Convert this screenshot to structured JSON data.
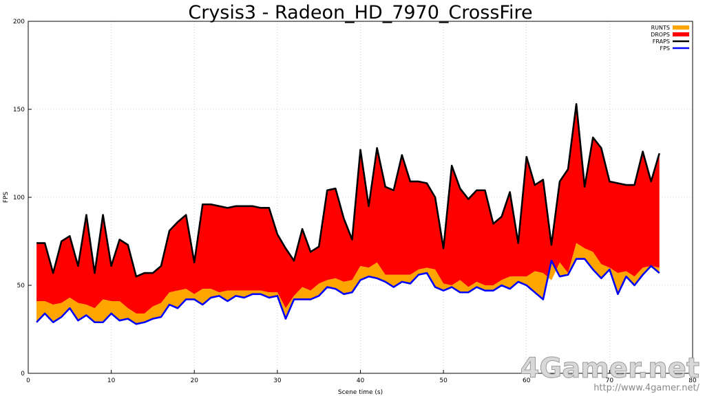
{
  "chart_data": {
    "type": "area",
    "title": "Crysis3 - Radeon_HD_7970_CrossFire",
    "xlabel": "Scene time (s)",
    "ylabel": "FPS",
    "xlim": [
      0,
      80
    ],
    "ylim": [
      0,
      200
    ],
    "xticks": [
      "0",
      "10",
      "20",
      "30",
      "40",
      "50",
      "60",
      "70",
      "80"
    ],
    "yticks": [
      "0",
      "50",
      "100",
      "150",
      "200"
    ],
    "grid": true,
    "legend_position": "top-right",
    "x": [
      1,
      2,
      3,
      4,
      5,
      6,
      7,
      8,
      9,
      10,
      11,
      12,
      13,
      14,
      15,
      16,
      17,
      18,
      19,
      20,
      21,
      22,
      23,
      24,
      25,
      26,
      27,
      28,
      29,
      30,
      31,
      32,
      33,
      34,
      35,
      36,
      37,
      38,
      39,
      40,
      41,
      42,
      43,
      44,
      45,
      46,
      47,
      48,
      49,
      50,
      51,
      52,
      53,
      54,
      55,
      56,
      57,
      58,
      59,
      60,
      61,
      62,
      63,
      64,
      65,
      66,
      67,
      68,
      69,
      70,
      71,
      72,
      73,
      74,
      75,
      76
    ],
    "series": [
      {
        "name": "FRAPS",
        "color": "#000000",
        "values": [
          74,
          74,
          57,
          75,
          78,
          61,
          90,
          57,
          90,
          61,
          76,
          73,
          55,
          57,
          57,
          61,
          81,
          86,
          90,
          63,
          96,
          96,
          95,
          94,
          95,
          95,
          95,
          94,
          94,
          79,
          71,
          64,
          82,
          69,
          72,
          104,
          105,
          88,
          76,
          127,
          95,
          128,
          106,
          104,
          124,
          109,
          109,
          108,
          100,
          71,
          118,
          105,
          99,
          104,
          104,
          85,
          89,
          103,
          74,
          123,
          107,
          110,
          73,
          109,
          116,
          153,
          106,
          134,
          128,
          109,
          108,
          107,
          107,
          126,
          109,
          125
        ]
      },
      {
        "name": "RUNTS",
        "color": "#ffa500",
        "values": [
          41,
          41,
          39,
          40,
          43,
          40,
          39,
          37,
          42,
          41,
          41,
          37,
          34,
          34,
          38,
          40,
          46,
          47,
          48,
          45,
          48,
          48,
          46,
          47,
          47,
          47,
          47,
          47,
          46,
          46,
          37,
          44,
          49,
          47,
          51,
          53,
          54,
          52,
          53,
          61,
          60,
          63,
          56,
          56,
          56,
          56,
          59,
          60,
          59,
          51,
          50,
          53,
          49,
          52,
          50,
          50,
          53,
          55,
          55,
          55,
          58,
          57,
          53,
          63,
          57,
          74,
          71,
          69,
          62,
          60,
          57,
          58,
          55,
          60,
          61,
          60
        ]
      },
      {
        "name": "FPS",
        "color": "#0000ff",
        "values": [
          29,
          34,
          29,
          32,
          37,
          30,
          33,
          29,
          29,
          34,
          30,
          31,
          28,
          29,
          31,
          32,
          39,
          37,
          42,
          42,
          39,
          43,
          44,
          41,
          44,
          43,
          45,
          45,
          43,
          44,
          31,
          42,
          42,
          42,
          44,
          49,
          48,
          45,
          46,
          53,
          55,
          54,
          52,
          49,
          52,
          51,
          56,
          57,
          49,
          47,
          49,
          46,
          46,
          49,
          47,
          47,
          50,
          48,
          52,
          50,
          46,
          42,
          64,
          55,
          56,
          65,
          65,
          59,
          54,
          59,
          45,
          55,
          50,
          56,
          61,
          57
        ]
      }
    ],
    "legend": [
      {
        "label": "RUNTS",
        "color": "#ffa500",
        "kind": "box"
      },
      {
        "label": "DROPS",
        "color": "#ff0000",
        "kind": "box"
      },
      {
        "label": "FRAPS",
        "color": "#000000",
        "kind": "line"
      },
      {
        "label": "FPS",
        "color": "#0000ff",
        "kind": "line"
      }
    ],
    "watermark": {
      "logo": "4Gamer.net",
      "url": "http://www.4gamer.net/"
    }
  }
}
